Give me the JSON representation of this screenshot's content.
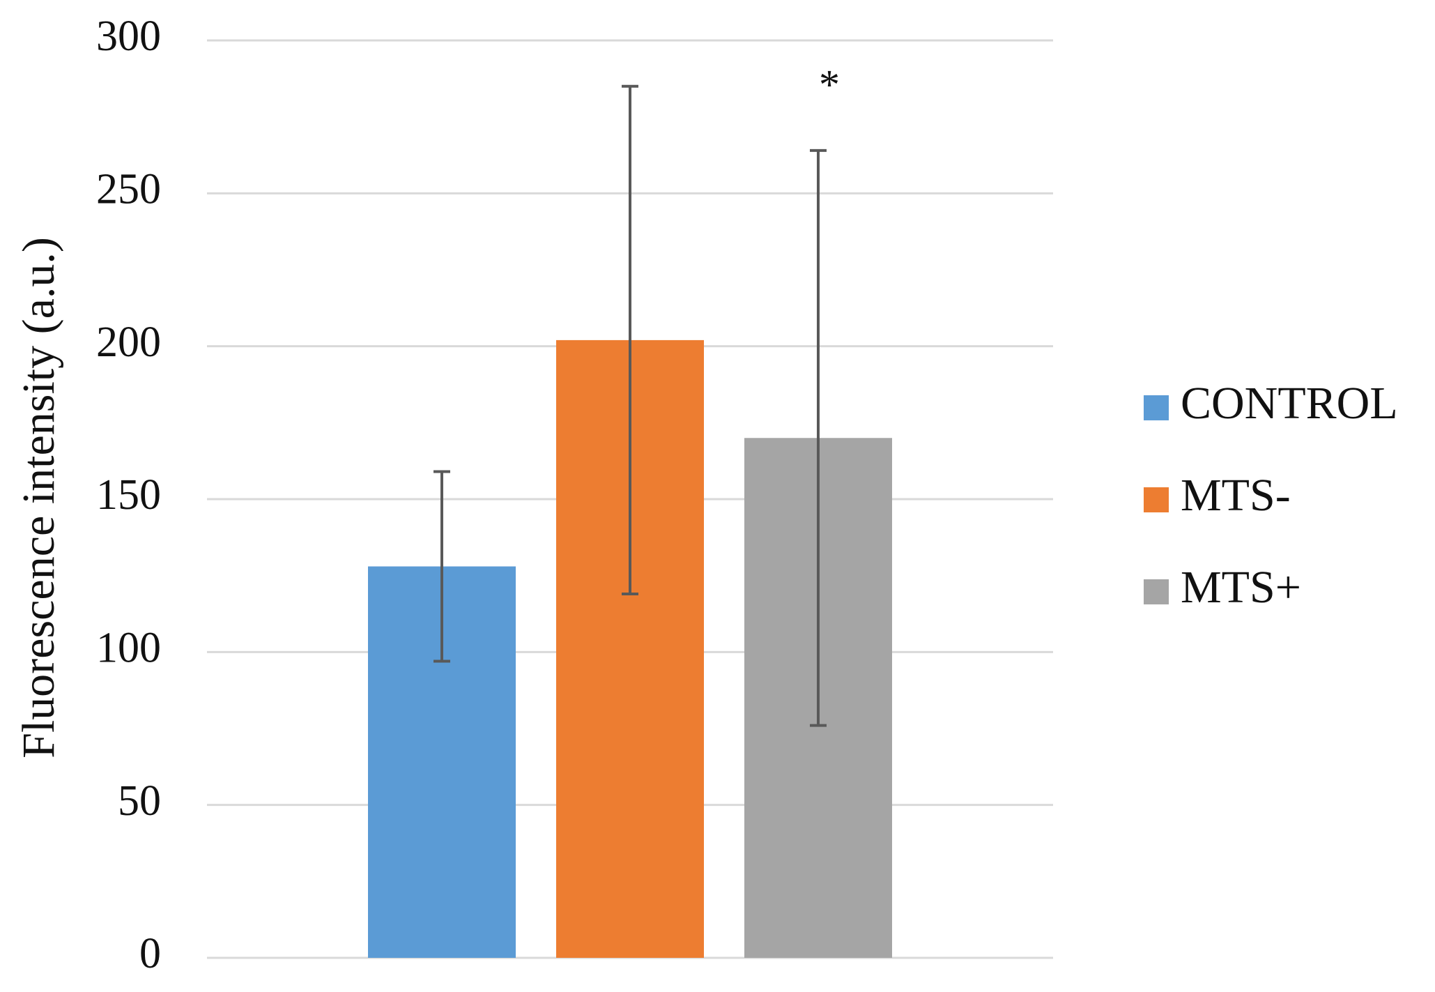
{
  "chart_data": {
    "type": "bar",
    "y_label": "Fluorescence intensity (a.u.)",
    "series": [
      {
        "name": "CONTROL",
        "color": "#5b9bd5",
        "values": [
          128
        ],
        "errors": [
          31
        ]
      },
      {
        "name": "MTS-",
        "color": "#ed7d31",
        "values": [
          202
        ],
        "errors": [
          83
        ]
      },
      {
        "name": "MTS+",
        "color": "#a5a5a5",
        "values": [
          170
        ],
        "errors": [
          94
        ],
        "annotation": "*"
      }
    ],
    "ylim": [
      0,
      300
    ],
    "yticks": [
      0,
      50,
      100,
      150,
      200,
      250,
      300
    ],
    "grid": true,
    "legend": "right"
  }
}
